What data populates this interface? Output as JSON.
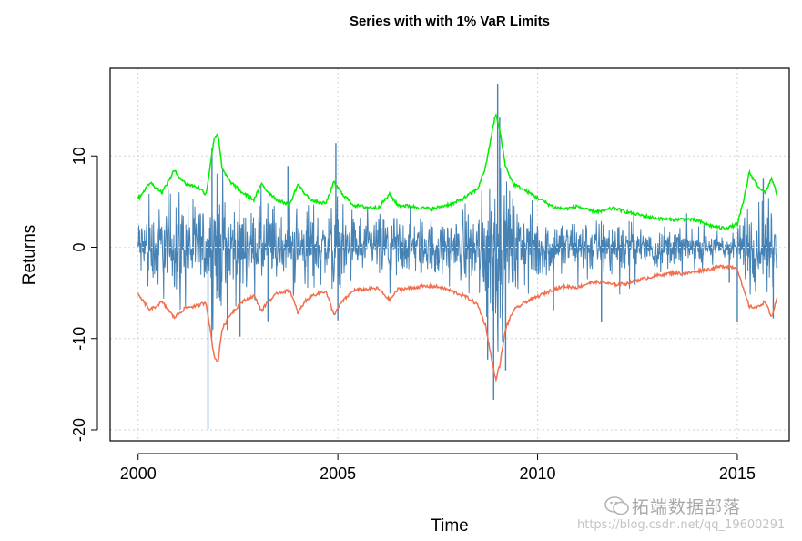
{
  "chart_data": {
    "type": "line",
    "title": "Series with with 1% VaR Limits",
    "xlabel": "Time",
    "ylabel": "Returns",
    "xlim": [
      1999.3,
      2016.3
    ],
    "ylim": [
      -21.2,
      19.6
    ],
    "x_ticks": [
      2000,
      2005,
      2010,
      2015
    ],
    "x_tick_labels": [
      "2000",
      "2005",
      "2010",
      "2015"
    ],
    "y_ticks": [
      -20,
      -10,
      0,
      10
    ],
    "y_tick_labels": [
      "-20",
      "-10",
      "0",
      "10"
    ],
    "grid": true,
    "legend": "none",
    "series": [
      {
        "color": "#00ee00",
        "kind": "upper-var-limit",
        "x": [
          2000.0,
          2000.3,
          2000.6,
          2000.9,
          2001.2,
          2001.5,
          2001.7,
          2001.8,
          2001.9,
          2002.0,
          2002.1,
          2002.3,
          2002.6,
          2002.9,
          2003.1,
          2003.2,
          2003.5,
          2003.8,
          2004.0,
          2004.2,
          2004.4,
          2004.7,
          2004.9,
          2005.1,
          2005.4,
          2005.7,
          2006.0,
          2006.3,
          2006.5,
          2006.8,
          2007.1,
          2007.4,
          2007.6,
          2007.9,
          2008.2,
          2008.5,
          2008.7,
          2008.85,
          2008.95,
          2009.05,
          2009.2,
          2009.4,
          2009.7,
          2010.0,
          2010.4,
          2010.7,
          2011.0,
          2011.3,
          2011.6,
          2011.9,
          2012.2,
          2012.5,
          2012.8,
          2013.1,
          2013.4,
          2013.7,
          2014.0,
          2014.3,
          2014.6,
          2014.8,
          2015.0,
          2015.15,
          2015.3,
          2015.5,
          2015.7,
          2015.85,
          2016.0
        ],
        "values": [
          5.3,
          7.1,
          6.0,
          8.4,
          6.9,
          6.6,
          5.8,
          8.8,
          11.9,
          12.5,
          8.6,
          7.2,
          6.0,
          5.2,
          7.0,
          6.3,
          5.1,
          4.7,
          6.9,
          5.7,
          5.0,
          4.8,
          7.1,
          5.9,
          4.6,
          4.4,
          4.3,
          5.8,
          4.6,
          4.5,
          4.3,
          4.2,
          4.5,
          4.8,
          5.5,
          6.4,
          8.8,
          12.4,
          14.6,
          12.9,
          8.8,
          6.9,
          6.2,
          5.4,
          4.4,
          4.2,
          4.5,
          4.0,
          3.9,
          4.3,
          3.9,
          3.6,
          3.3,
          3.1,
          3.0,
          3.1,
          2.9,
          2.4,
          2.1,
          2.2,
          2.5,
          4.9,
          8.2,
          6.8,
          5.9,
          7.6,
          5.7
        ]
      },
      {
        "color": "#f07050",
        "kind": "lower-var-limit",
        "x": [
          2000.0,
          2000.3,
          2000.6,
          2000.9,
          2001.2,
          2001.5,
          2001.7,
          2001.8,
          2001.9,
          2002.0,
          2002.1,
          2002.3,
          2002.6,
          2002.9,
          2003.1,
          2003.2,
          2003.5,
          2003.8,
          2004.0,
          2004.2,
          2004.4,
          2004.7,
          2004.9,
          2005.1,
          2005.4,
          2005.7,
          2006.0,
          2006.3,
          2006.5,
          2006.8,
          2007.1,
          2007.4,
          2007.6,
          2007.9,
          2008.2,
          2008.5,
          2008.7,
          2008.85,
          2008.95,
          2009.05,
          2009.2,
          2009.4,
          2009.7,
          2010.0,
          2010.4,
          2010.7,
          2011.0,
          2011.3,
          2011.6,
          2011.9,
          2012.2,
          2012.5,
          2012.8,
          2013.1,
          2013.4,
          2013.7,
          2014.0,
          2014.3,
          2014.6,
          2014.8,
          2015.0,
          2015.15,
          2015.3,
          2015.5,
          2015.7,
          2015.85,
          2016.0
        ],
        "values": [
          -5.2,
          -6.9,
          -6.0,
          -7.7,
          -6.6,
          -6.4,
          -6.0,
          -8.9,
          -11.9,
          -12.6,
          -9.0,
          -7.4,
          -6.0,
          -5.3,
          -7.0,
          -6.2,
          -5.0,
          -4.7,
          -7.2,
          -5.8,
          -5.2,
          -4.8,
          -7.4,
          -6.0,
          -4.7,
          -4.6,
          -4.5,
          -5.8,
          -4.6,
          -4.5,
          -4.3,
          -4.3,
          -4.4,
          -4.9,
          -5.4,
          -6.3,
          -8.6,
          -12.3,
          -14.5,
          -13.0,
          -8.9,
          -6.9,
          -6.0,
          -5.4,
          -4.6,
          -4.3,
          -4.4,
          -3.9,
          -3.8,
          -4.1,
          -4.0,
          -3.6,
          -3.3,
          -3.0,
          -2.8,
          -2.9,
          -2.6,
          -2.4,
          -2.1,
          -2.1,
          -2.3,
          -4.6,
          -6.5,
          -6.6,
          -5.9,
          -7.7,
          -5.6
        ]
      },
      {
        "color": "#4682b4",
        "kind": "returns",
        "spikes_x": [
          2001.75,
          2001.85,
          2002.55,
          2003.25,
          2003.75,
          2004.95,
          2005.0,
          2008.75,
          2008.9,
          2009.0,
          2009.05,
          2009.2,
          2010.4,
          2011.6,
          2014.8,
          2015.0,
          2015.65,
          2015.9
        ],
        "spikes_values": [
          -19.9,
          10.9,
          -9.8,
          -8.1,
          8.9,
          11.4,
          -8.0,
          -12.3,
          -16.7,
          17.9,
          14.2,
          -13.5,
          -6.9,
          -8.2,
          -3.9,
          -8.2,
          7.6,
          -7.8
        ]
      }
    ]
  },
  "watermark": {
    "text": "拓端数据部落",
    "url": "https://blog.csdn.net/qq_19600291"
  }
}
